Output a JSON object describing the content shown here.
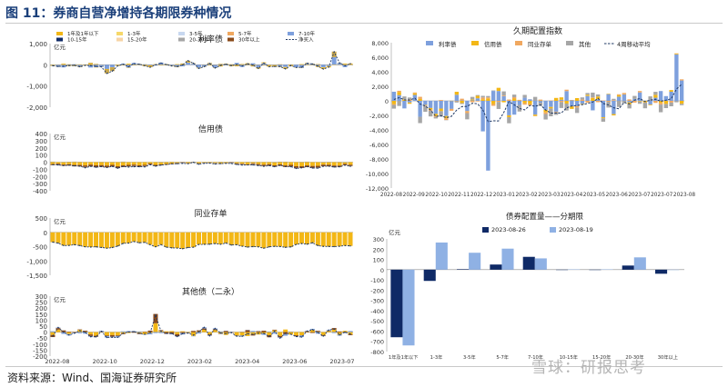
{
  "figure": {
    "title": "图 11：券商自营净增持各期限券种情况",
    "source": "资料来源：Wind、国海证券研究所",
    "watermark": "雪球：研报思考"
  },
  "colors": {
    "navy": "#0f2a66",
    "yellow": "#f3b716",
    "lightblue": "#7ea0dd",
    "olive": "#c8a64a",
    "lightyellow": "#f6d86a",
    "paleblue": "#c8d8f0",
    "orange": "#f0a860",
    "brown": "#8a4a1a",
    "gray": "#a6a6a6",
    "peach": "#f7d4a6",
    "dash": "#1f3864"
  },
  "chart_data": [
    {
      "id": "rate",
      "type": "bar",
      "title": "利率债",
      "unit": "亿元",
      "ylim": [
        -2000,
        1000
      ],
      "yticks": [
        "1,000",
        "0",
        "-1,000",
        "-2,000"
      ],
      "legend": [
        "1年及1年以下",
        "1-3年",
        "3-5年",
        "5-7年",
        "7-10年",
        "10-15年",
        "15-20年",
        "20-30年",
        "30年以上",
        "净买入"
      ],
      "net_series_name": "净买入"
    },
    {
      "id": "credit",
      "type": "bar",
      "title": "信用债",
      "unit": "亿元",
      "ylim": [
        -400,
        400
      ],
      "yticks": [
        "400",
        "300",
        "200",
        "100",
        "0",
        "-100",
        "-200",
        "-300",
        "-400"
      ]
    },
    {
      "id": "ncd",
      "type": "bar",
      "title": "同业存单",
      "unit": "亿元",
      "ylim": [
        -1500,
        500
      ],
      "yticks": [
        "500",
        "0",
        "-500",
        "-1,000",
        "-1,500"
      ]
    },
    {
      "id": "other",
      "type": "bar",
      "title": "其他债（二永）",
      "unit": "亿元",
      "ylim": [
        -200,
        300
      ],
      "yticks": [
        "300",
        "250",
        "200",
        "150",
        "100",
        "50",
        "0",
        "-50",
        "-100",
        "-150",
        "-200"
      ],
      "x_tick_labels": [
        "2022-08",
        "2022-10",
        "2022-12",
        "2023-02",
        "2023-04",
        "2023-06",
        "2023-07"
      ]
    },
    {
      "id": "duration",
      "type": "bar",
      "title": "久期配置指数",
      "ylim": [
        -12000,
        8000
      ],
      "yticks": [
        "8,000",
        "6,000",
        "4,000",
        "2,000",
        "0",
        "-2,000",
        "-4,000",
        "-6,000",
        "-8,000",
        "-10,000",
        "-12,000"
      ],
      "legend": [
        "利率债",
        "信用债",
        "同业存单",
        "其他",
        "4周移动平均"
      ],
      "x_tick_labels": [
        "2022-08",
        "2022-09",
        "2022-10",
        "2022-11",
        "2022-12",
        "2023-01",
        "2023-02",
        "2023-03",
        "2023-04",
        "2023-05",
        "2023-06",
        "2023-07",
        "2023-07",
        "2023-08"
      ]
    },
    {
      "id": "maturity",
      "type": "bar",
      "title": "债券配置量——分期限",
      "unit": "亿元",
      "ylim": [
        -800,
        300
      ],
      "yticks": [
        "300",
        "200",
        "100",
        "0",
        "-100",
        "-200",
        "-300",
        "-400",
        "-500",
        "-600",
        "-700",
        "-800"
      ],
      "categories": [
        "1年及1年以下",
        "1-3年",
        "3-5年",
        "5-7年",
        "7-10年",
        "10-15年",
        "15-20年",
        "20-30年",
        "30年以上"
      ],
      "series": [
        {
          "name": "2023-08-26",
          "values": [
            -660,
            -110,
            5,
            50,
            125,
            0,
            0,
            40,
            -40
          ]
        },
        {
          "name": "2023-08-19",
          "values": [
            -740,
            265,
            165,
            205,
            110,
            3,
            3,
            120,
            0
          ]
        }
      ]
    }
  ]
}
